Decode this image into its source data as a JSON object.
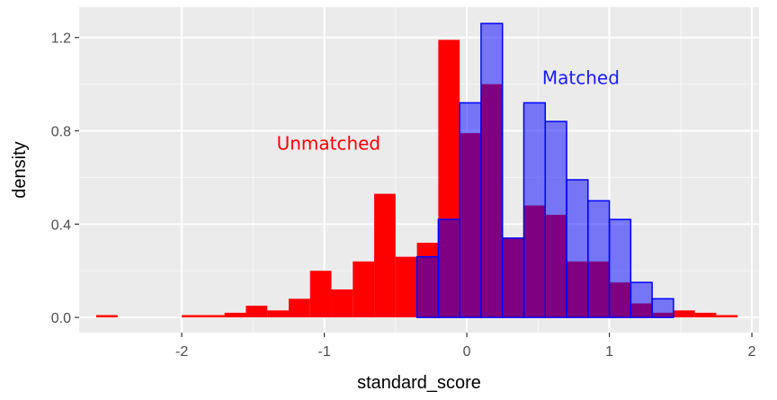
{
  "chart_data": {
    "type": "histogram",
    "xlabel": "standard_score",
    "ylabel": "density",
    "xlim": [
      -2.72,
      2.05
    ],
    "ylim": [
      -0.065,
      1.33
    ],
    "x_ticks": [
      -2,
      -1,
      0,
      1,
      2
    ],
    "x_tick_labels": [
      "-2",
      "-1",
      "0",
      "1",
      "2"
    ],
    "y_ticks": [
      0.0,
      0.4,
      0.8,
      1.2
    ],
    "y_tick_labels": [
      "0.0",
      "0.4",
      "0.8",
      "1.2"
    ],
    "grid": true,
    "bin_edges": [
      -2.6,
      -2.45,
      -2.3,
      -2.15,
      -2.0,
      -1.85,
      -1.7,
      -1.55,
      -1.4,
      -1.25,
      -1.1,
      -0.95,
      -0.8,
      -0.65,
      -0.5,
      -0.35,
      -0.2,
      -0.05,
      0.1,
      0.25,
      0.4,
      0.55,
      0.7,
      0.85,
      1.0,
      1.15,
      1.3,
      1.45,
      1.6,
      1.75,
      1.9
    ],
    "series": [
      {
        "name": "Unmatched",
        "color": "#ff0000",
        "densities": [
          0.01,
          0.0,
          0.0,
          0.0,
          0.01,
          0.01,
          0.02,
          0.05,
          0.03,
          0.08,
          0.2,
          0.12,
          0.24,
          0.53,
          0.26,
          0.32,
          1.19,
          0.79,
          1.0,
          0.34,
          0.48,
          0.44,
          0.24,
          0.24,
          0.15,
          0.06,
          0.02,
          0.03,
          0.02,
          0.01
        ]
      },
      {
        "name": "Matched",
        "color": "#0000ff",
        "fill_opacity": 0.5,
        "densities": [
          0.0,
          0.0,
          0.0,
          0.0,
          0.0,
          0.0,
          0.0,
          0.0,
          0.0,
          0.0,
          0.0,
          0.0,
          0.0,
          0.0,
          0.0,
          0.26,
          0.42,
          0.92,
          1.26,
          0.34,
          0.92,
          0.84,
          0.59,
          0.5,
          0.42,
          0.15,
          0.08,
          0.0,
          0.0,
          0.0
        ]
      }
    ],
    "annotations": [
      {
        "text": "Unmatched",
        "x": -0.97,
        "y": 0.72,
        "color": "#ff0000"
      },
      {
        "text": "Matched",
        "x": 0.8,
        "y": 1.0,
        "color": "#1c1cff"
      }
    ]
  }
}
